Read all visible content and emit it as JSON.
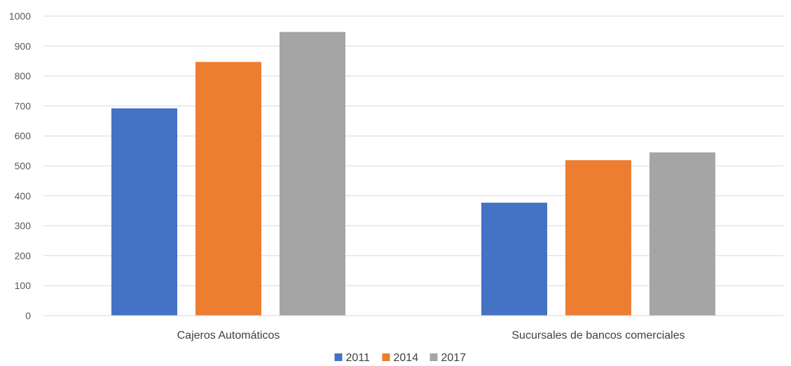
{
  "chart_data": {
    "type": "bar",
    "categories": [
      "Cajeros Automáticos",
      "Sucursales de bancos comerciales"
    ],
    "series": [
      {
        "name": "2011",
        "values": [
          692,
          377
        ],
        "color": "#4472C4"
      },
      {
        "name": "2014",
        "values": [
          847,
          519
        ],
        "color": "#ED7D31"
      },
      {
        "name": "2017",
        "values": [
          947,
          545
        ],
        "color": "#A5A5A5"
      }
    ],
    "ylim": [
      0,
      1000
    ],
    "yticks": [
      "0",
      "100",
      "200",
      "300",
      "400",
      "500",
      "600",
      "700",
      "800",
      "900",
      "1000"
    ],
    "grid": true,
    "legend_position": "bottom"
  }
}
